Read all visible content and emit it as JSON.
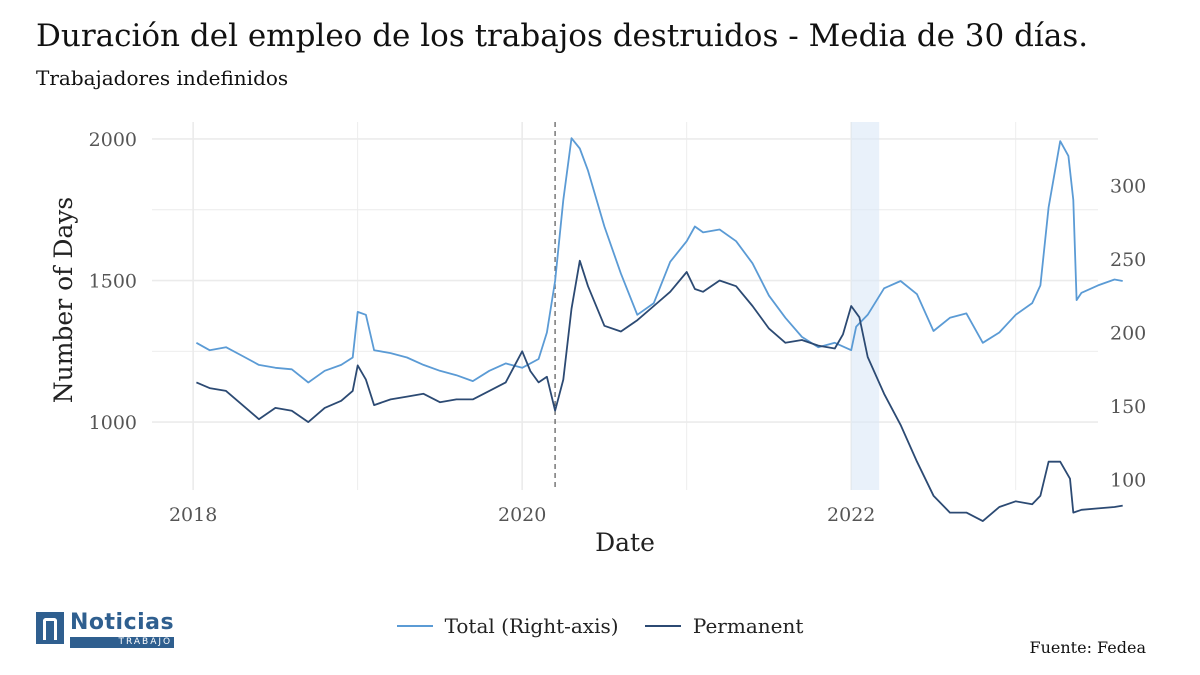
{
  "title": "Duración del empleo de los trabajos destruidos - Media de 30 días.",
  "subtitle": "Trabajadores indefinidos",
  "source": "Fuente: Fedea",
  "logo": {
    "name": "Noticias",
    "sub": "TRABAJO"
  },
  "chart_data": {
    "type": "line",
    "xlabel": "Date",
    "ylabel": "Number of Days",
    "x_range": [
      2017.75,
      2023.5
    ],
    "x_ticks": [
      "2018",
      "2020",
      "2022"
    ],
    "y_left_range": [
      760,
      2060
    ],
    "y_left_ticks": [
      "1000",
      "1500",
      "2000"
    ],
    "y_right_range": [
      93,
      343
    ],
    "y_right_ticks": [
      "100",
      "150",
      "200",
      "250",
      "300"
    ],
    "grid": true,
    "legend_position": "bottom",
    "vline_x": 2020.2,
    "shaded_band": [
      2022.0,
      2022.17
    ],
    "series": [
      {
        "name": "Total (Right-axis)",
        "axis": "right",
        "color": "#5b9bd5",
        "points": [
          [
            2018.02,
            193
          ],
          [
            2018.1,
            188
          ],
          [
            2018.2,
            190
          ],
          [
            2018.3,
            184
          ],
          [
            2018.4,
            178
          ],
          [
            2018.5,
            176
          ],
          [
            2018.6,
            175
          ],
          [
            2018.7,
            166
          ],
          [
            2018.8,
            174
          ],
          [
            2018.9,
            178
          ],
          [
            2018.97,
            183
          ],
          [
            2019.0,
            214
          ],
          [
            2019.05,
            212
          ],
          [
            2019.1,
            188
          ],
          [
            2019.2,
            186
          ],
          [
            2019.3,
            183
          ],
          [
            2019.4,
            178
          ],
          [
            2019.5,
            174
          ],
          [
            2019.6,
            171
          ],
          [
            2019.7,
            167
          ],
          [
            2019.8,
            174
          ],
          [
            2019.9,
            179
          ],
          [
            2020.0,
            176
          ],
          [
            2020.1,
            182
          ],
          [
            2020.15,
            200
          ],
          [
            2020.2,
            235
          ],
          [
            2020.25,
            290
          ],
          [
            2020.3,
            332
          ],
          [
            2020.35,
            325
          ],
          [
            2020.4,
            310
          ],
          [
            2020.5,
            272
          ],
          [
            2020.6,
            240
          ],
          [
            2020.7,
            212
          ],
          [
            2020.8,
            220
          ],
          [
            2020.9,
            248
          ],
          [
            2021.0,
            262
          ],
          [
            2021.05,
            272
          ],
          [
            2021.1,
            268
          ],
          [
            2021.2,
            270
          ],
          [
            2021.3,
            262
          ],
          [
            2021.4,
            247
          ],
          [
            2021.5,
            225
          ],
          [
            2021.6,
            210
          ],
          [
            2021.7,
            197
          ],
          [
            2021.8,
            190
          ],
          [
            2021.9,
            193
          ],
          [
            2022.0,
            188
          ],
          [
            2022.03,
            204
          ],
          [
            2022.1,
            212
          ],
          [
            2022.2,
            230
          ],
          [
            2022.3,
            235
          ],
          [
            2022.4,
            226
          ],
          [
            2022.5,
            201
          ],
          [
            2022.6,
            210
          ],
          [
            2022.7,
            213
          ],
          [
            2022.8,
            193
          ],
          [
            2022.9,
            200
          ],
          [
            2023.0,
            212
          ],
          [
            2023.1,
            220
          ],
          [
            2023.15,
            232
          ],
          [
            2023.2,
            285
          ],
          [
            2023.27,
            330
          ],
          [
            2023.32,
            320
          ],
          [
            2023.35,
            290
          ],
          [
            2023.37,
            222
          ],
          [
            2023.4,
            227
          ],
          [
            2023.5,
            232
          ],
          [
            2023.6,
            236
          ],
          [
            2023.65,
            235
          ]
        ]
      },
      {
        "name": "Permanent",
        "axis": "left",
        "color": "#2c4a73",
        "points": [
          [
            2018.02,
            1140
          ],
          [
            2018.1,
            1120
          ],
          [
            2018.2,
            1110
          ],
          [
            2018.3,
            1060
          ],
          [
            2018.4,
            1010
          ],
          [
            2018.5,
            1050
          ],
          [
            2018.6,
            1040
          ],
          [
            2018.7,
            1000
          ],
          [
            2018.8,
            1050
          ],
          [
            2018.9,
            1075
          ],
          [
            2018.97,
            1110
          ],
          [
            2019.0,
            1200
          ],
          [
            2019.05,
            1150
          ],
          [
            2019.1,
            1060
          ],
          [
            2019.2,
            1080
          ],
          [
            2019.3,
            1090
          ],
          [
            2019.4,
            1100
          ],
          [
            2019.5,
            1070
          ],
          [
            2019.6,
            1080
          ],
          [
            2019.7,
            1080
          ],
          [
            2019.8,
            1110
          ],
          [
            2019.9,
            1140
          ],
          [
            2020.0,
            1250
          ],
          [
            2020.05,
            1180
          ],
          [
            2020.1,
            1140
          ],
          [
            2020.15,
            1160
          ],
          [
            2020.2,
            1040
          ],
          [
            2020.25,
            1150
          ],
          [
            2020.3,
            1400
          ],
          [
            2020.35,
            1570
          ],
          [
            2020.4,
            1480
          ],
          [
            2020.5,
            1340
          ],
          [
            2020.6,
            1320
          ],
          [
            2020.7,
            1360
          ],
          [
            2020.8,
            1410
          ],
          [
            2020.9,
            1460
          ],
          [
            2021.0,
            1530
          ],
          [
            2021.05,
            1470
          ],
          [
            2021.1,
            1460
          ],
          [
            2021.2,
            1500
          ],
          [
            2021.3,
            1480
          ],
          [
            2021.4,
            1410
          ],
          [
            2021.5,
            1330
          ],
          [
            2021.6,
            1280
          ],
          [
            2021.7,
            1290
          ],
          [
            2021.8,
            1270
          ],
          [
            2021.9,
            1260
          ],
          [
            2021.95,
            1310
          ],
          [
            2022.0,
            1410
          ],
          [
            2022.05,
            1370
          ],
          [
            2022.1,
            1230
          ],
          [
            2022.2,
            1100
          ],
          [
            2022.3,
            990
          ],
          [
            2022.4,
            860
          ],
          [
            2022.5,
            740
          ],
          [
            2022.6,
            680
          ],
          [
            2022.7,
            680
          ],
          [
            2022.8,
            650
          ],
          [
            2022.9,
            700
          ],
          [
            2023.0,
            720
          ],
          [
            2023.1,
            710
          ],
          [
            2023.15,
            740
          ],
          [
            2023.2,
            860
          ],
          [
            2023.27,
            860
          ],
          [
            2023.33,
            800
          ],
          [
            2023.35,
            680
          ],
          [
            2023.4,
            690
          ],
          [
            2023.5,
            695
          ],
          [
            2023.6,
            700
          ],
          [
            2023.65,
            705
          ]
        ]
      }
    ]
  }
}
